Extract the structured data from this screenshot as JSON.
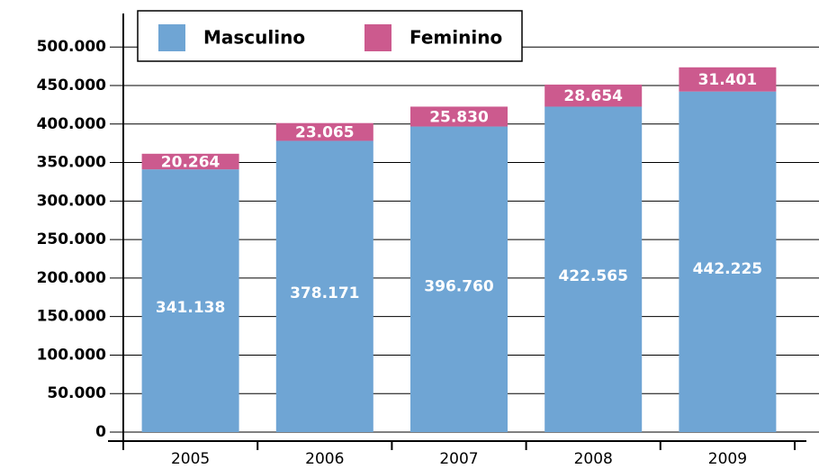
{
  "chart_data": {
    "type": "stacked_bar",
    "categories": [
      "2005",
      "2006",
      "2007",
      "2008",
      "2009"
    ],
    "series": [
      {
        "name": "Masculino",
        "color": "#6fa5d4",
        "values": [
          341138,
          378171,
          396760,
          422565,
          442225
        ],
        "value_labels": [
          "341.138",
          "378.171",
          "396.760",
          "422.565",
          "442.225"
        ]
      },
      {
        "name": "Feminino",
        "color": "#cc5a8e",
        "values": [
          20264,
          23065,
          25830,
          28654,
          31401
        ],
        "value_labels": [
          "20.264",
          "23.065",
          "25.830",
          "28.654",
          "31.401"
        ]
      }
    ],
    "ylim": [
      0,
      540000
    ],
    "yticks": [
      0,
      {
        "value": 50000,
        "label": "50.000"
      },
      {
        "value": 100000,
        "label": "100.000"
      },
      {
        "value": 150000,
        "label": "150.000"
      },
      {
        "value": 200000,
        "label": "200.000"
      },
      {
        "value": 250000,
        "label": "250.000"
      },
      {
        "value": 300000,
        "label": "300.000"
      },
      {
        "value": 350000,
        "label": "350.000"
      },
      {
        "value": 400000,
        "label": "400.000"
      },
      {
        "value": 450000,
        "label": "450.000"
      },
      {
        "value": 500000,
        "label": "500.000"
      }
    ],
    "grid": true,
    "legend": "top"
  }
}
